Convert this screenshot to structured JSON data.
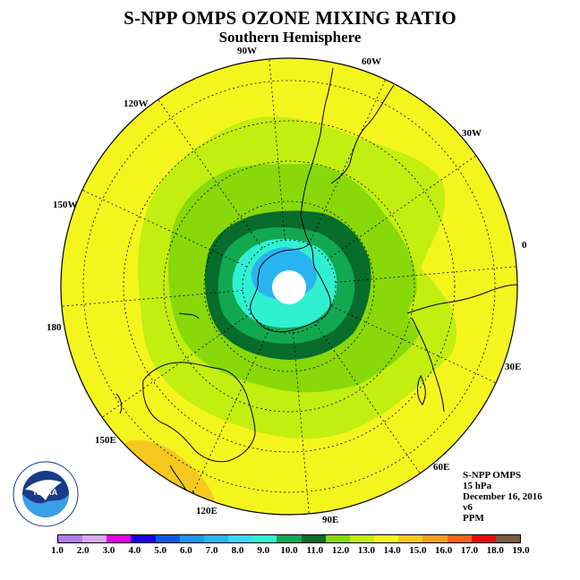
{
  "header": {
    "title": "S-NPP OMPS OZONE MIXING RATIO",
    "subtitle": "Southern Hemisphere"
  },
  "longitude_labels": [
    "90W",
    "60W",
    "30W",
    "0",
    "30E",
    "60E",
    "90E",
    "120E",
    "150E",
    "180",
    "150W",
    "120W"
  ],
  "info": {
    "instrument": "S-NPP OMPS",
    "level": "15 hPa",
    "date": "December 16, 2016",
    "version": "v6",
    "units": "PPM"
  },
  "colorbar": {
    "ticks": [
      "1.0",
      "2.0",
      "3.0",
      "4.0",
      "5.0",
      "6.0",
      "7.0",
      "8.0",
      "9.0",
      "10.0",
      "11.0",
      "12.0",
      "13.0",
      "14.0",
      "15.0",
      "16.0",
      "17.0",
      "18.0",
      "19.0"
    ],
    "colors": [
      "#b57be8",
      "#d9a8f0",
      "#e600e6",
      "#1a00e6",
      "#0a5ae6",
      "#1e96ee",
      "#28b4f0",
      "#3cd6f5",
      "#30f0d2",
      "#12a850",
      "#086c2c",
      "#88d80a",
      "#c2ee10",
      "#f5f51e",
      "#f5c81e",
      "#f5a01a",
      "#f56414",
      "#e60a0a",
      "#7a5a3c"
    ]
  },
  "logo": {
    "text": "NOAA",
    "icon": "noaa-logo-icon"
  },
  "map": {
    "projection": "polar-stereographic-south",
    "contour_colors": {
      "outer": "#f5f51e",
      "ring13": "#c2ee10",
      "ring12": "#88d80a",
      "ring11": "#086c2c",
      "ring10": "#12a850",
      "ring9": "#30f0d2",
      "ring8": "#28b4f0",
      "ring15": "#f5c81e"
    }
  }
}
